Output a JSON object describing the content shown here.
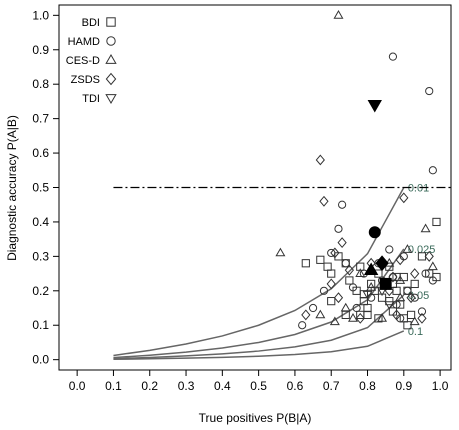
{
  "chart_data": {
    "type": "scatter",
    "xlabel": "True positives P(B|A)",
    "ylabel": "Diagnostic accuracy P(A|B)",
    "xlim": [
      -0.05,
      1.03
    ],
    "ylim": [
      -0.03,
      1.03
    ],
    "xticks": [
      "0.0",
      "0.1",
      "0.2",
      "0.3",
      "0.4",
      "0.5",
      "0.6",
      "0.7",
      "0.8",
      "0.9",
      "1.0"
    ],
    "yticks": [
      "0.0",
      "0.1",
      "0.2",
      "0.3",
      "0.4",
      "0.5",
      "0.6",
      "0.7",
      "0.8",
      "0.9",
      "1.0"
    ],
    "grid": false,
    "legend_position": "top-left",
    "legend": [
      {
        "name": "BDI",
        "marker": "square"
      },
      {
        "name": "HAMD",
        "marker": "circle"
      },
      {
        "name": "CES-D",
        "marker": "triangle-up"
      },
      {
        "name": "ZSDS",
        "marker": "diamond"
      },
      {
        "name": "TDI",
        "marker": "triangle-down"
      }
    ],
    "curves": [
      {
        "label": "0.01",
        "prevalence": 0.1
      },
      {
        "label": "0.025",
        "prevalence": 0.05
      },
      {
        "label": "0.05",
        "prevalence": 0.025
      },
      {
        "label": "0.1",
        "prevalence": 0.01
      }
    ],
    "curve_x": [
      0.1,
      0.2,
      0.3,
      0.4,
      0.5,
      0.6,
      0.7,
      0.8,
      0.9
    ],
    "reference_line": {
      "y": 0.5,
      "style": "dash-dot"
    },
    "series": [
      {
        "name": "BDI",
        "marker": "square",
        "points": [
          [
            0.67,
            0.29
          ],
          [
            0.69,
            0.27
          ],
          [
            0.7,
            0.25
          ],
          [
            0.72,
            0.3
          ],
          [
            0.74,
            0.28
          ],
          [
            0.75,
            0.23
          ],
          [
            0.77,
            0.2
          ],
          [
            0.78,
            0.27
          ],
          [
            0.79,
            0.19
          ],
          [
            0.79,
            0.17
          ],
          [
            0.8,
            0.15
          ],
          [
            0.8,
            0.13
          ],
          [
            0.81,
            0.22
          ],
          [
            0.82,
            0.2
          ],
          [
            0.83,
            0.12
          ],
          [
            0.84,
            0.18
          ],
          [
            0.86,
            0.27
          ],
          [
            0.87,
            0.22
          ],
          [
            0.88,
            0.2
          ],
          [
            0.88,
            0.24
          ],
          [
            0.89,
            0.16
          ],
          [
            0.9,
            0.12
          ],
          [
            0.9,
            0.24
          ],
          [
            0.91,
            0.2
          ],
          [
            0.92,
            0.13
          ],
          [
            0.93,
            0.22
          ],
          [
            0.95,
            0.3
          ],
          [
            0.97,
            0.25
          ],
          [
            0.99,
            0.4
          ],
          [
            0.99,
            0.24
          ],
          [
            0.78,
            0.13
          ],
          [
            0.83,
            0.25
          ],
          [
            0.87,
            0.14
          ],
          [
            0.91,
            0.1
          ],
          [
            0.63,
            0.28
          ],
          [
            0.7,
            0.17
          ],
          [
            0.74,
            0.13
          ],
          [
            0.86,
            0.17
          ]
        ]
      },
      {
        "name": "HAMD",
        "marker": "circle",
        "points": [
          [
            0.62,
            0.1
          ],
          [
            0.65,
            0.15
          ],
          [
            0.68,
            0.2
          ],
          [
            0.7,
            0.31
          ],
          [
            0.72,
            0.38
          ],
          [
            0.73,
            0.45
          ],
          [
            0.74,
            0.28
          ],
          [
            0.76,
            0.21
          ],
          [
            0.77,
            0.15
          ],
          [
            0.79,
            0.25
          ],
          [
            0.81,
            0.18
          ],
          [
            0.83,
            0.28
          ],
          [
            0.84,
            0.23
          ],
          [
            0.86,
            0.32
          ],
          [
            0.87,
            0.88
          ],
          [
            0.87,
            0.24
          ],
          [
            0.88,
            0.16
          ],
          [
            0.9,
            0.3
          ],
          [
            0.91,
            0.2
          ],
          [
            0.93,
            0.18
          ],
          [
            0.95,
            0.14
          ],
          [
            0.96,
            0.25
          ],
          [
            0.98,
            0.55
          ],
          [
            0.98,
            0.23
          ],
          [
            0.97,
            0.78
          ],
          [
            0.89,
            0.12
          ]
        ]
      },
      {
        "name": "CES-D",
        "marker": "triangle-up",
        "points": [
          [
            0.56,
            0.31
          ],
          [
            0.72,
            1.0
          ],
          [
            0.74,
            0.15
          ],
          [
            0.76,
            0.12
          ],
          [
            0.78,
            0.25
          ],
          [
            0.81,
            0.21
          ],
          [
            0.84,
            0.12
          ],
          [
            0.86,
            0.28
          ],
          [
            0.89,
            0.23
          ],
          [
            0.89,
            0.18
          ],
          [
            0.91,
            0.32
          ],
          [
            0.93,
            0.11
          ],
          [
            0.96,
            0.38
          ],
          [
            0.98,
            0.27
          ],
          [
            0.67,
            0.13
          ],
          [
            0.71,
            0.11
          ]
        ]
      },
      {
        "name": "ZSDS",
        "marker": "diamond",
        "points": [
          [
            0.67,
            0.58
          ],
          [
            0.68,
            0.46
          ],
          [
            0.7,
            0.22
          ],
          [
            0.72,
            0.18
          ],
          [
            0.73,
            0.34
          ],
          [
            0.75,
            0.26
          ],
          [
            0.78,
            0.12
          ],
          [
            0.81,
            0.28
          ],
          [
            0.82,
            0.37
          ],
          [
            0.86,
            0.2
          ],
          [
            0.87,
            0.24
          ],
          [
            0.88,
            0.13
          ],
          [
            0.89,
            0.29
          ],
          [
            0.9,
            0.47
          ],
          [
            0.92,
            0.18
          ],
          [
            0.93,
            0.25
          ],
          [
            0.95,
            0.12
          ],
          [
            0.97,
            0.3
          ],
          [
            0.71,
            0.31
          ],
          [
            0.63,
            0.13
          ]
        ]
      },
      {
        "name": "TDI",
        "marker": "triangle-down",
        "points": [
          [
            0.8,
            0.19
          ],
          [
            0.84,
            0.2
          ],
          [
            0.86,
            0.16
          ]
        ]
      }
    ],
    "highlighted_points": [
      {
        "series": "TDI",
        "marker": "triangle-down",
        "x": 0.82,
        "y": 0.74
      },
      {
        "series": "HAMD",
        "marker": "circle",
        "x": 0.82,
        "y": 0.37
      },
      {
        "series": "ZSDS",
        "marker": "diamond",
        "x": 0.84,
        "y": 0.28
      },
      {
        "series": "CES-D",
        "marker": "triangle-up",
        "x": 0.81,
        "y": 0.26
      },
      {
        "series": "BDI",
        "marker": "square",
        "x": 0.85,
        "y": 0.22
      }
    ]
  }
}
